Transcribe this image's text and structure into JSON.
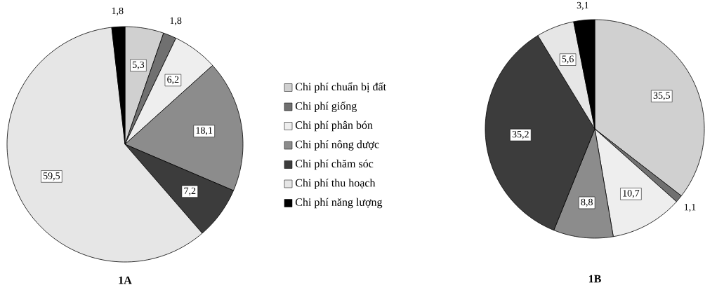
{
  "chart_data": [
    {
      "type": "pie",
      "title": "1A",
      "legend": "right",
      "categories": [
        "Chi phí chuẩn bị đất",
        "Chi phí giống",
        "Chi phí phân bón",
        "Chi phí nông dược",
        "Chi phí chăm sóc",
        "Chi phí thu hoạch",
        "Chi phí năng lượng"
      ],
      "values": [
        5.3,
        1.8,
        6.2,
        18.1,
        7.2,
        59.5,
        1.8
      ],
      "value_labels": [
        "5,3",
        "1,8",
        "6,2",
        "18,1",
        "7,2",
        "59,5",
        "1,8"
      ],
      "colors": [
        "#d0d0d0",
        "#707070",
        "#eeeeee",
        "#8c8c8c",
        "#3c3c3c",
        "#e6e6e6",
        "#000000"
      ]
    },
    {
      "type": "pie",
      "title": "1B",
      "legend": false,
      "categories": [
        null,
        null,
        null,
        null,
        null,
        null,
        null
      ],
      "values": [
        35.5,
        1.1,
        10.7,
        8.8,
        35.2,
        5.6,
        3.1
      ],
      "value_labels": [
        "35,5",
        "1,1",
        "10,7",
        "8,8",
        "35,2",
        "5,6",
        "3,1"
      ],
      "colors": [
        "#d0d0d0",
        "#707070",
        "#eeeeee",
        "#8c8c8c",
        "#3c3c3c",
        "#e6e6e6",
        "#000000"
      ]
    }
  ]
}
